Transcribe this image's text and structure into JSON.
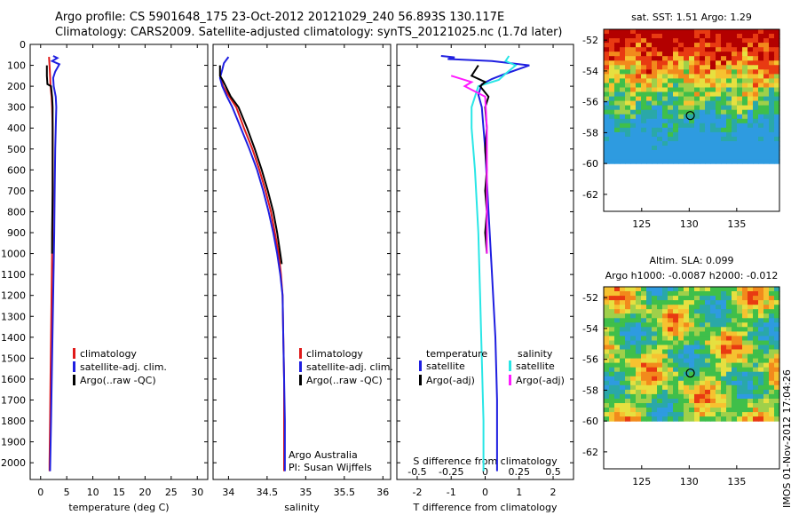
{
  "header": {
    "line1": "Argo profile: CS 5901648_175 23-Oct-2012 20121029_240 56.893S 130.117E",
    "line2": "Climatology: CARS2009. Satellite-adjusted climatology: synTS_20121025.nc (1.7d later)"
  },
  "stamp": "IMOS 01-Nov-2012 17:04:26",
  "colors": {
    "climatology": "#e01a1a",
    "satellite": "#1f1fe0",
    "argo": "#000000",
    "satellite_salinity": "#29e6e6",
    "argo_salinity": "#ff1aff"
  },
  "chart_data": [
    {
      "type": "line",
      "xlabel": "temperature (deg C)",
      "ylabel": "",
      "xlim": [
        -2,
        32
      ],
      "ylim": [
        2080,
        0
      ],
      "xticks": [
        0,
        5,
        10,
        15,
        20,
        25,
        30
      ],
      "yticks": [
        0,
        100,
        200,
        300,
        400,
        500,
        600,
        700,
        800,
        900,
        1000,
        1100,
        1200,
        1300,
        1400,
        1500,
        1600,
        1700,
        1800,
        1900,
        2000
      ],
      "legend": [
        "climatology",
        "satellite-adj. clim.",
        "Argo(..raw -QC)"
      ],
      "series": [
        {
          "name": "climatology",
          "points": [
            [
              1.6,
              60
            ],
            [
              1.7,
              100
            ],
            [
              1.8,
              150
            ],
            [
              1.9,
              200
            ],
            [
              2.1,
              250
            ],
            [
              2.2,
              300
            ],
            [
              2.3,
              400
            ],
            [
              2.3,
              500
            ],
            [
              2.3,
              600
            ],
            [
              2.3,
              800
            ],
            [
              2.2,
              1000
            ],
            [
              2.1,
              1200
            ],
            [
              2.0,
              1400
            ],
            [
              1.9,
              1600
            ],
            [
              1.8,
              1800
            ],
            [
              1.7,
              2000
            ],
            [
              1.7,
              2040
            ]
          ]
        },
        {
          "name": "satellite-adj. clim.",
          "points": [
            [
              2.4,
              55
            ],
            [
              3.2,
              65
            ],
            [
              2.2,
              80
            ],
            [
              3.6,
              95
            ],
            [
              2.8,
              130
            ],
            [
              2.4,
              160
            ],
            [
              2.5,
              200
            ],
            [
              2.9,
              250
            ],
            [
              3.0,
              300
            ],
            [
              2.9,
              400
            ],
            [
              2.8,
              500
            ],
            [
              2.7,
              700
            ],
            [
              2.6,
              900
            ],
            [
              2.4,
              1200
            ],
            [
              2.2,
              1500
            ],
            [
              2.0,
              1800
            ],
            [
              1.8,
              2040
            ]
          ]
        },
        {
          "name": "Argo(..raw -QC)",
          "points": [
            [
              1.2,
              100
            ],
            [
              1.2,
              150
            ],
            [
              1.3,
              190
            ],
            [
              2.0,
              200
            ],
            [
              2.2,
              250
            ],
            [
              2.3,
              300
            ],
            [
              2.3,
              500
            ],
            [
              2.3,
              700
            ],
            [
              2.2,
              900
            ],
            [
              2.2,
              1000
            ]
          ]
        }
      ],
      "annotations": []
    },
    {
      "type": "line",
      "xlabel": "salinity",
      "ylabel": "",
      "xlim": [
        33.8,
        36.1
      ],
      "ylim": [
        2080,
        0
      ],
      "xticks": [
        34,
        34.5,
        35,
        35.5,
        36
      ],
      "legend": [
        "climatology",
        "satellite-adj. clim.",
        "Argo(..raw -QC)"
      ],
      "series": [
        {
          "name": "climatology",
          "points": [
            [
              33.89,
              150
            ],
            [
              33.93,
              200
            ],
            [
              34.01,
              250
            ],
            [
              34.1,
              300
            ],
            [
              34.2,
              400
            ],
            [
              34.31,
              500
            ],
            [
              34.4,
              600
            ],
            [
              34.48,
              700
            ],
            [
              34.55,
              800
            ],
            [
              34.6,
              900
            ],
            [
              34.65,
              1000
            ],
            [
              34.68,
              1100
            ],
            [
              34.7,
              1200
            ],
            [
              34.71,
              1400
            ],
            [
              34.72,
              1600
            ],
            [
              34.72,
              1800
            ],
            [
              34.72,
              2000
            ],
            [
              34.72,
              2040
            ]
          ]
        },
        {
          "name": "satellite-adj. clim.",
          "points": [
            [
              34.0,
              60
            ],
            [
              33.94,
              90
            ],
            [
              33.92,
              120
            ],
            [
              33.89,
              160
            ],
            [
              33.92,
              200
            ],
            [
              33.98,
              250
            ],
            [
              34.05,
              300
            ],
            [
              34.16,
              400
            ],
            [
              34.27,
              500
            ],
            [
              34.37,
              600
            ],
            [
              34.45,
              700
            ],
            [
              34.52,
              800
            ],
            [
              34.58,
              900
            ],
            [
              34.63,
              1000
            ],
            [
              34.67,
              1100
            ],
            [
              34.7,
              1200
            ],
            [
              34.71,
              1400
            ],
            [
              34.72,
              1600
            ],
            [
              34.73,
              1800
            ],
            [
              34.73,
              2000
            ],
            [
              34.73,
              2040
            ]
          ]
        },
        {
          "name": "Argo(..raw -QC)",
          "points": [
            [
              33.89,
              100
            ],
            [
              33.89,
              150
            ],
            [
              33.93,
              175
            ],
            [
              34.03,
              250
            ],
            [
              34.13,
              300
            ],
            [
              34.24,
              400
            ],
            [
              34.34,
              500
            ],
            [
              34.43,
              600
            ],
            [
              34.51,
              700
            ],
            [
              34.58,
              800
            ],
            [
              34.63,
              900
            ],
            [
              34.67,
              1000
            ],
            [
              34.69,
              1050
            ]
          ]
        }
      ],
      "annotations": [
        "Argo Australia",
        "PI: Susan Wijffels"
      ]
    },
    {
      "type": "line",
      "xlabel": "T difference from climatology",
      "xlabel2": "S difference from climatology",
      "ylabel": "",
      "xlim": [
        -2.6,
        2.6
      ],
      "ylim": [
        2080,
        0
      ],
      "xticks": [
        -2,
        -1,
        0,
        1,
        2
      ],
      "xticks2": [
        "-0.5",
        "-0.25",
        "0",
        "0.25",
        "0.5"
      ],
      "legend_titles": [
        "temperature",
        "salinity"
      ],
      "legend": [
        "satellite",
        "Argo(-adj)",
        "satellite",
        "Argo(-adj)"
      ],
      "series": [
        {
          "name": "satellite",
          "group": "temperature",
          "points": [
            [
              -1.3,
              55
            ],
            [
              -0.9,
              62
            ],
            [
              -1.1,
              70
            ],
            [
              0.2,
              80
            ],
            [
              1.3,
              100
            ],
            [
              0.6,
              140
            ],
            [
              0.2,
              165
            ],
            [
              -0.1,
              190
            ],
            [
              -0.2,
              240
            ],
            [
              -0.1,
              300
            ],
            [
              0.0,
              500
            ],
            [
              0.1,
              800
            ],
            [
              0.2,
              1100
            ],
            [
              0.3,
              1400
            ],
            [
              0.35,
              1700
            ],
            [
              0.35,
              2040
            ]
          ]
        },
        {
          "name": "satellite",
          "group": "salinity",
          "points": [
            [
              0.7,
              55
            ],
            [
              0.6,
              80
            ],
            [
              0.9,
              100
            ],
            [
              0.6,
              140
            ],
            [
              0.4,
              170
            ],
            [
              -0.2,
              200
            ],
            [
              -0.4,
              300
            ],
            [
              -0.4,
              400
            ],
            [
              -0.3,
              600
            ],
            [
              -0.2,
              900
            ],
            [
              -0.15,
              1200
            ],
            [
              -0.1,
              1500
            ],
            [
              -0.05,
              1800
            ],
            [
              -0.05,
              2040
            ]
          ]
        },
        {
          "name": "Argo(-adj)",
          "group": "temperature",
          "points": [
            [
              -0.2,
              100
            ],
            [
              -0.4,
              150
            ],
            [
              0.0,
              180
            ],
            [
              -0.15,
              200
            ],
            [
              0.1,
              250
            ],
            [
              0.0,
              300
            ],
            [
              0.05,
              400
            ],
            [
              0.0,
              500
            ],
            [
              0.05,
              600
            ],
            [
              0.0,
              700
            ],
            [
              0.05,
              800
            ],
            [
              0.0,
              900
            ],
            [
              0.05,
              1000
            ]
          ]
        },
        {
          "name": "Argo(-adj)",
          "group": "salinity",
          "points": [
            [
              -1.0,
              150
            ],
            [
              -0.4,
              180
            ],
            [
              -0.6,
              200
            ],
            [
              0.0,
              250
            ],
            [
              0.05,
              400
            ],
            [
              0.05,
              600
            ],
            [
              0.05,
              1000
            ]
          ]
        }
      ]
    }
  ],
  "maps": [
    {
      "title": "sat. SST: 1.51  Argo: 1.29",
      "xticks": [
        "125",
        "130",
        "135"
      ],
      "yticks": [
        "-52",
        "-54",
        "-56",
        "-58",
        "-60",
        "-62"
      ]
    },
    {
      "title_line1": "Altim. SLA: 0.099",
      "title_line2": "Argo h1000: -0.0087 h2000: -0.012",
      "xticks": [
        "125",
        "130",
        "135"
      ],
      "yticks": [
        "-52",
        "-54",
        "-56",
        "-58",
        "-60",
        "-62"
      ]
    }
  ]
}
